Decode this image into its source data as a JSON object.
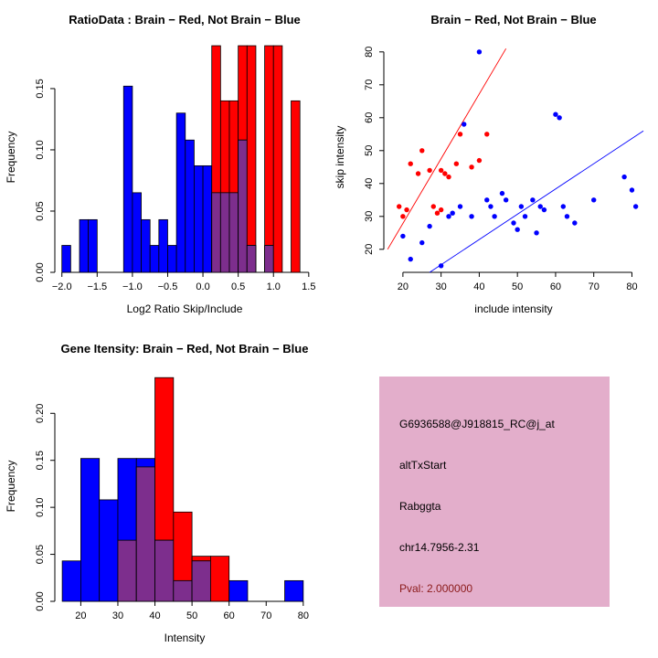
{
  "colors": {
    "red": "#FF0000",
    "blue": "#0000FF",
    "overlap": "#7D2E8D",
    "box_bg": "#E3AECB",
    "pval_text": "#8B1A1A",
    "axis": "#000000"
  },
  "chart_data": [
    {
      "id": "ratio-histogram",
      "type": "bar",
      "title": "RatioData : Brain − Red, Not Brain − Blue",
      "xlabel": "Log2 Ratio Skip/Include",
      "ylabel": "Frequency",
      "legend": "Brain = red, Not Brain = blue, overlap = purple",
      "xlim": [
        -2.1,
        1.58
      ],
      "ylim": [
        0,
        0.188
      ],
      "xticks": [
        -2.0,
        -1.5,
        -1.0,
        -0.5,
        0.0,
        0.5,
        1.0,
        1.5
      ],
      "xtick_labels": [
        "−2.0",
        "−1.5",
        "−1.0",
        "−0.5",
        "0.0",
        "0.5",
        "1.0",
        "1.5"
      ],
      "yticks": [
        0,
        0.05,
        0.1,
        0.15
      ],
      "ytick_labels": [
        "0.00",
        "0.05",
        "0.10",
        "0.15"
      ],
      "bin_start": -2.0,
      "bin_width": 0.125,
      "series": [
        {
          "name": "Not Brain",
          "color": "blue",
          "values": [
            0.022,
            0,
            0.043,
            0.043,
            0,
            0,
            0,
            0.152,
            0.065,
            0.043,
            0.022,
            0.043,
            0.022,
            0.13,
            0.108,
            0.087,
            0.087,
            0.065,
            0.065,
            0.065,
            0.108,
            0.022,
            0,
            0.022,
            0,
            0,
            0,
            0
          ]
        },
        {
          "name": "Brain",
          "color": "red",
          "values": [
            0,
            0,
            0,
            0,
            0,
            0,
            0,
            0,
            0,
            0,
            0,
            0,
            0,
            0,
            0,
            0,
            0,
            0.185,
            0.14,
            0.14,
            0.185,
            0.185,
            0,
            0.185,
            0.185,
            0,
            0.14,
            0
          ]
        }
      ]
    },
    {
      "id": "skip-include-scatter",
      "type": "scatter",
      "title": "Brain − Red, Not Brain − Blue",
      "xlabel": "include intensity",
      "ylabel": "skip intensity",
      "legend": "Brain = red points/line, Not Brain = blue points/line",
      "xlim": [
        15,
        83
      ],
      "ylim": [
        13,
        83
      ],
      "xticks": [
        20,
        30,
        40,
        50,
        60,
        70,
        80
      ],
      "xtick_labels": [
        "20",
        "30",
        "40",
        "50",
        "60",
        "70",
        "80"
      ],
      "yticks": [
        20,
        30,
        40,
        50,
        60,
        70,
        80
      ],
      "ytick_labels": [
        "20",
        "30",
        "40",
        "50",
        "60",
        "70",
        "80"
      ],
      "series": [
        {
          "name": "Brain",
          "color": "red",
          "points": [
            [
              19,
              33
            ],
            [
              20,
              30
            ],
            [
              21,
              32
            ],
            [
              22,
              46
            ],
            [
              24,
              43
            ],
            [
              25,
              50
            ],
            [
              27,
              44
            ],
            [
              28,
              33
            ],
            [
              29,
              31
            ],
            [
              30,
              32
            ],
            [
              30,
              44
            ],
            [
              31,
              43
            ],
            [
              32,
              42
            ],
            [
              34,
              46
            ],
            [
              35,
              55
            ],
            [
              38,
              45
            ],
            [
              40,
              47
            ],
            [
              42,
              55
            ]
          ]
        },
        {
          "name": "Not Brain",
          "color": "blue",
          "points": [
            [
              20,
              24
            ],
            [
              22,
              17
            ],
            [
              25,
              22
            ],
            [
              27,
              27
            ],
            [
              30,
              15
            ],
            [
              32,
              30
            ],
            [
              33,
              31
            ],
            [
              35,
              33
            ],
            [
              36,
              58
            ],
            [
              38,
              30
            ],
            [
              40,
              80
            ],
            [
              42,
              35
            ],
            [
              43,
              33
            ],
            [
              44,
              30
            ],
            [
              46,
              37
            ],
            [
              47,
              35
            ],
            [
              49,
              28
            ],
            [
              50,
              26
            ],
            [
              51,
              33
            ],
            [
              52,
              30
            ],
            [
              54,
              35
            ],
            [
              55,
              25
            ],
            [
              56,
              33
            ],
            [
              57,
              32
            ],
            [
              60,
              61
            ],
            [
              61,
              60
            ],
            [
              62,
              33
            ],
            [
              63,
              30
            ],
            [
              65,
              28
            ],
            [
              70,
              35
            ],
            [
              78,
              42
            ],
            [
              80,
              38
            ],
            [
              81,
              33
            ]
          ]
        }
      ],
      "lines": [
        {
          "name": "brain-fit-line",
          "color": "red",
          "x1": 16,
          "y1": 20,
          "x2": 47,
          "y2": 81
        },
        {
          "name": "notbrain-fit-line",
          "color": "blue",
          "x1": 27,
          "y1": 13,
          "x2": 83,
          "y2": 56
        }
      ]
    },
    {
      "id": "gene-intensity-histogram",
      "type": "bar",
      "title": "Gene Itensity: Brain − Red, Not Brain − Blue",
      "xlabel": "Intensity",
      "ylabel": "Frequency",
      "legend": "Brain = red, Not Brain = blue, overlap = purple",
      "xlim": [
        13,
        83
      ],
      "ylim": [
        0,
        0.245
      ],
      "xticks": [
        20,
        30,
        40,
        50,
        60,
        70,
        80
      ],
      "xtick_labels": [
        "20",
        "30",
        "40",
        "50",
        "60",
        "70",
        "80"
      ],
      "yticks": [
        0,
        0.05,
        0.1,
        0.15,
        0.2
      ],
      "ytick_labels": [
        "0.00",
        "0.05",
        "0.10",
        "0.15",
        "0.20"
      ],
      "bin_start": 15,
      "bin_width": 5,
      "series": [
        {
          "name": "Not Brain",
          "color": "blue",
          "values": [
            0.043,
            0.152,
            0.108,
            0.152,
            0.152,
            0.065,
            0.022,
            0.043,
            0,
            0.022,
            0,
            0,
            0.022
          ]
        },
        {
          "name": "Brain",
          "color": "red",
          "values": [
            0,
            0,
            0,
            0.065,
            0.143,
            0.238,
            0.095,
            0.048,
            0.048,
            0,
            0,
            0,
            0
          ]
        }
      ]
    }
  ],
  "info_box": {
    "probe_id": "G6936588@J918815_RC@j_at",
    "event_type": "altTxStart",
    "gene": "Rabggta",
    "locus": "chr14.7956-2.31",
    "pval": "Pval: 2.000000"
  }
}
